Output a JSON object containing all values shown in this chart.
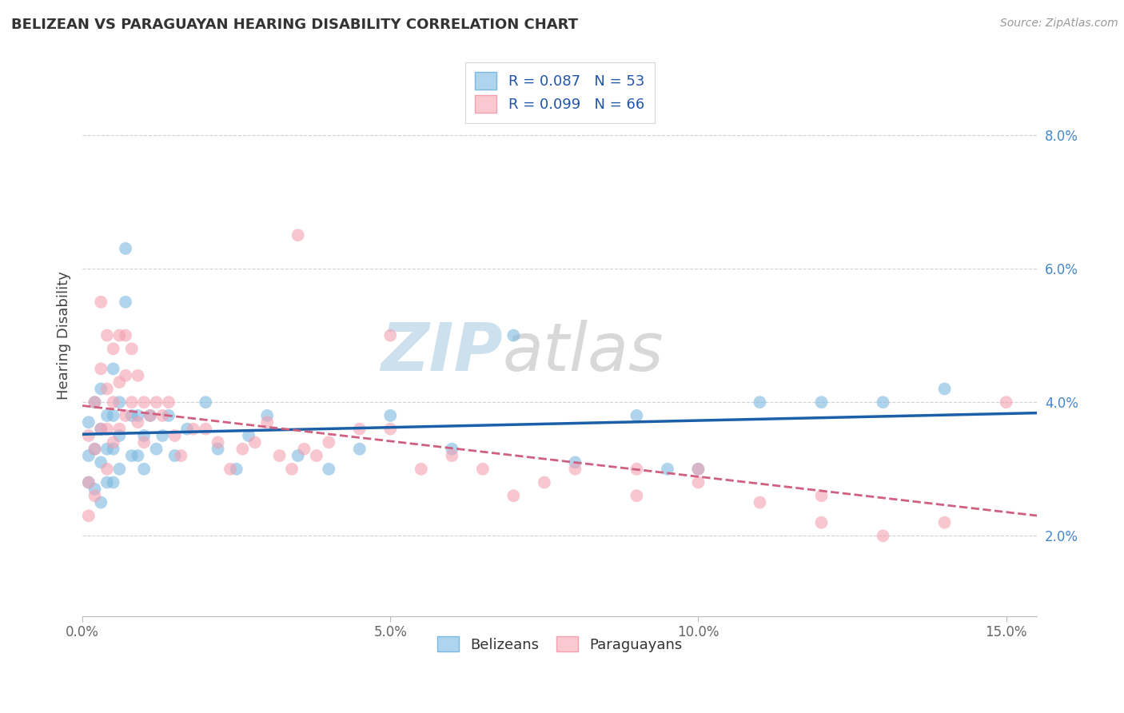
{
  "title": "BELIZEAN VS PARAGUAYAN HEARING DISABILITY CORRELATION CHART",
  "source": "Source: ZipAtlas.com",
  "ylabel": "Hearing Disability",
  "xlim": [
    0.0,
    0.155
  ],
  "ylim": [
    0.008,
    0.092
  ],
  "xticks": [
    0.0,
    0.05,
    0.1,
    0.15
  ],
  "xtick_labels": [
    "0.0%",
    "5.0%",
    "10.0%",
    "15.0%"
  ],
  "yticks": [
    0.02,
    0.04,
    0.06,
    0.08
  ],
  "ytick_labels": [
    "2.0%",
    "4.0%",
    "6.0%",
    "8.0%"
  ],
  "belizean_R": 0.087,
  "belizean_N": 53,
  "paraguayan_R": 0.099,
  "paraguayan_N": 66,
  "belizean_color": "#7ab8e0",
  "paraguayan_color": "#f4a0b0",
  "belizean_color_light": "#afd4ee",
  "paraguayan_color_light": "#f9c8d0",
  "trend_blue": "#1a5fa8",
  "trend_pink": "#d06080",
  "watermark_color": "#d8e8f4",
  "belizean_x": [
    0.001,
    0.001,
    0.001,
    0.002,
    0.002,
    0.002,
    0.003,
    0.003,
    0.003,
    0.003,
    0.004,
    0.004,
    0.004,
    0.005,
    0.005,
    0.005,
    0.005,
    0.006,
    0.006,
    0.006,
    0.007,
    0.007,
    0.008,
    0.008,
    0.009,
    0.009,
    0.01,
    0.01,
    0.011,
    0.012,
    0.013,
    0.014,
    0.015,
    0.017,
    0.02,
    0.022,
    0.025,
    0.027,
    0.03,
    0.035,
    0.04,
    0.045,
    0.05,
    0.06,
    0.07,
    0.08,
    0.09,
    0.095,
    0.1,
    0.11,
    0.12,
    0.13,
    0.14
  ],
  "belizean_y": [
    0.037,
    0.032,
    0.028,
    0.04,
    0.033,
    0.027,
    0.042,
    0.036,
    0.031,
    0.025,
    0.038,
    0.033,
    0.028,
    0.045,
    0.038,
    0.033,
    0.028,
    0.04,
    0.035,
    0.03,
    0.063,
    0.055,
    0.038,
    0.032,
    0.038,
    0.032,
    0.035,
    0.03,
    0.038,
    0.033,
    0.035,
    0.038,
    0.032,
    0.036,
    0.04,
    0.033,
    0.03,
    0.035,
    0.038,
    0.032,
    0.03,
    0.033,
    0.038,
    0.033,
    0.05,
    0.031,
    0.038,
    0.03,
    0.03,
    0.04,
    0.04,
    0.04,
    0.042
  ],
  "paraguayan_x": [
    0.001,
    0.001,
    0.001,
    0.002,
    0.002,
    0.002,
    0.003,
    0.003,
    0.003,
    0.004,
    0.004,
    0.004,
    0.004,
    0.005,
    0.005,
    0.005,
    0.006,
    0.006,
    0.006,
    0.007,
    0.007,
    0.007,
    0.008,
    0.008,
    0.009,
    0.009,
    0.01,
    0.01,
    0.011,
    0.012,
    0.013,
    0.014,
    0.015,
    0.016,
    0.018,
    0.02,
    0.022,
    0.024,
    0.026,
    0.028,
    0.03,
    0.032,
    0.034,
    0.036,
    0.038,
    0.04,
    0.045,
    0.05,
    0.055,
    0.06,
    0.065,
    0.07,
    0.075,
    0.08,
    0.09,
    0.1,
    0.11,
    0.12,
    0.13,
    0.14,
    0.15,
    0.035,
    0.05,
    0.09,
    0.1,
    0.12
  ],
  "paraguayan_y": [
    0.035,
    0.028,
    0.023,
    0.04,
    0.033,
    0.026,
    0.055,
    0.045,
    0.036,
    0.05,
    0.042,
    0.036,
    0.03,
    0.048,
    0.04,
    0.034,
    0.05,
    0.043,
    0.036,
    0.05,
    0.044,
    0.038,
    0.048,
    0.04,
    0.044,
    0.037,
    0.04,
    0.034,
    0.038,
    0.04,
    0.038,
    0.04,
    0.035,
    0.032,
    0.036,
    0.036,
    0.034,
    0.03,
    0.033,
    0.034,
    0.037,
    0.032,
    0.03,
    0.033,
    0.032,
    0.034,
    0.036,
    0.036,
    0.03,
    0.032,
    0.03,
    0.026,
    0.028,
    0.03,
    0.03,
    0.028,
    0.025,
    0.022,
    0.02,
    0.022,
    0.04,
    0.065,
    0.05,
    0.026,
    0.03,
    0.026
  ]
}
